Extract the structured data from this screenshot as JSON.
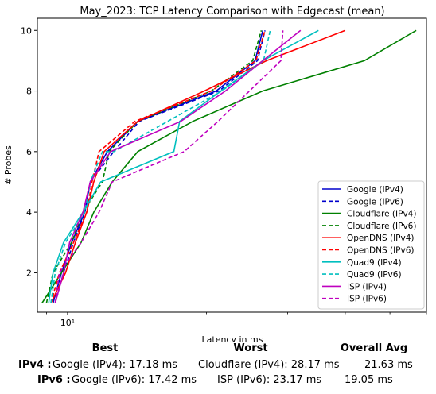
{
  "chart_data": {
    "type": "line",
    "title": "May_2023: TCP Latency Comparison with Edgecast (mean)",
    "xlabel": "Latency in ms",
    "ylabel": "# Probes",
    "xscale": "log",
    "xlim": [
      8.6,
      60
    ],
    "ylim": [
      0.7,
      10.4
    ],
    "xticks": [
      {
        "value": 10,
        "label": "10¹"
      }
    ],
    "yticks": [
      2,
      4,
      6,
      8,
      10
    ],
    "grid": false,
    "legend_position": "lower-right",
    "series": [
      {
        "name": "Google (IPv4)",
        "color": "#0000cc",
        "dash": "solid",
        "points": [
          [
            9.3,
            1
          ],
          [
            9.7,
            2
          ],
          [
            10.2,
            3
          ],
          [
            10.9,
            4
          ],
          [
            11.2,
            5
          ],
          [
            12.2,
            6
          ],
          [
            14.2,
            7
          ],
          [
            21,
            8
          ],
          [
            25.5,
            9
          ],
          [
            26.5,
            10
          ]
        ]
      },
      {
        "name": "Google (IPv6)",
        "color": "#0000cc",
        "dash": "dashed",
        "points": [
          [
            9.4,
            1
          ],
          [
            9.8,
            2
          ],
          [
            10.3,
            3
          ],
          [
            10.9,
            4
          ],
          [
            11.2,
            5
          ],
          [
            12.6,
            6
          ],
          [
            14.3,
            7
          ],
          [
            21.3,
            8
          ],
          [
            25.8,
            9
          ],
          [
            26.8,
            10
          ]
        ]
      },
      {
        "name": "Cloudflare (IPv4)",
        "color": "#008000",
        "dash": "solid",
        "points": [
          [
            8.8,
            1
          ],
          [
            9.7,
            2
          ],
          [
            10.7,
            3
          ],
          [
            11.4,
            4
          ],
          [
            12.5,
            5
          ],
          [
            14.2,
            6
          ],
          [
            18.7,
            7
          ],
          [
            26.5,
            8
          ],
          [
            44,
            9
          ],
          [
            57,
            10
          ]
        ]
      },
      {
        "name": "Cloudflare (IPv6)",
        "color": "#008000",
        "dash": "dashed",
        "points": [
          [
            9.0,
            1
          ],
          [
            9.3,
            2
          ],
          [
            10.2,
            3
          ],
          [
            10.8,
            4
          ],
          [
            11.9,
            5
          ],
          [
            12.3,
            6
          ],
          [
            14.2,
            7
          ],
          [
            20.5,
            8
          ],
          [
            25.2,
            9
          ],
          [
            26.3,
            10
          ]
        ]
      },
      {
        "name": "OpenDNS (IPv4)",
        "color": "#ff0000",
        "dash": "solid",
        "points": [
          [
            9.2,
            1
          ],
          [
            9.9,
            2
          ],
          [
            10.4,
            3
          ],
          [
            11.0,
            4
          ],
          [
            11.4,
            5
          ],
          [
            12.0,
            6
          ],
          [
            14.2,
            7
          ],
          [
            19.8,
            8
          ],
          [
            27,
            9
          ],
          [
            40,
            10
          ]
        ]
      },
      {
        "name": "OpenDNS (IPv6)",
        "color": "#ff0000",
        "dash": "dashed",
        "points": [
          [
            9.2,
            1
          ],
          [
            9.6,
            2
          ],
          [
            10.3,
            3
          ],
          [
            11.0,
            4
          ],
          [
            11.3,
            5
          ],
          [
            11.7,
            6
          ],
          [
            14.0,
            7
          ],
          [
            20.5,
            8
          ],
          [
            25.6,
            9
          ],
          [
            26.8,
            10
          ]
        ]
      },
      {
        "name": "Quad9 (IPv4)",
        "color": "#00bfbf",
        "dash": "solid",
        "points": [
          [
            9.1,
            1
          ],
          [
            9.3,
            2
          ],
          [
            9.8,
            3
          ],
          [
            10.8,
            4
          ],
          [
            11.8,
            5
          ],
          [
            17.0,
            6
          ],
          [
            17.5,
            7
          ],
          [
            21.5,
            8
          ],
          [
            26.5,
            9
          ],
          [
            35,
            10
          ]
        ]
      },
      {
        "name": "Quad9 (IPv6)",
        "color": "#00bfbf",
        "dash": "dashed",
        "points": [
          [
            9.2,
            1
          ],
          [
            9.4,
            2
          ],
          [
            9.9,
            3
          ],
          [
            10.9,
            4
          ],
          [
            11.2,
            5
          ],
          [
            11.9,
            6
          ],
          [
            12.6,
            6
          ],
          [
            21.6,
            8
          ],
          [
            26.6,
            9
          ],
          [
            27.5,
            10
          ]
        ]
      },
      {
        "name": "ISP (IPv4)",
        "color": "#bf00bf",
        "dash": "solid",
        "points": [
          [
            9.4,
            1
          ],
          [
            9.8,
            2
          ],
          [
            10.1,
            3
          ],
          [
            10.8,
            4
          ],
          [
            11.2,
            5
          ],
          [
            12.4,
            6
          ],
          [
            17.6,
            7
          ],
          [
            22,
            8
          ],
          [
            26.5,
            9
          ],
          [
            32,
            10
          ]
        ]
      },
      {
        "name": "ISP (IPv6)",
        "color": "#bf00bf",
        "dash": "dashed",
        "points": [
          [
            9.4,
            1
          ],
          [
            9.6,
            2
          ],
          [
            10.7,
            3
          ],
          [
            11.7,
            4
          ],
          [
            12.5,
            5
          ],
          [
            17.9,
            6
          ],
          [
            21.2,
            7
          ],
          [
            24.8,
            8
          ],
          [
            29,
            9
          ],
          [
            29.3,
            10
          ]
        ]
      }
    ]
  },
  "summary": {
    "headers": {
      "best": "Best",
      "worst": "Worst",
      "avg": "Overall Avg"
    },
    "rows": [
      {
        "label": "IPv4 :",
        "best": "Google (IPv4): 17.18 ms",
        "worst": "Cloudflare (IPv4): 28.17 ms",
        "avg": "21.63 ms"
      },
      {
        "label": "IPv6 :",
        "best": "Google (IPv6): 17.42 ms",
        "worst": "ISP (IPv6): 23.17 ms",
        "avg": "19.05 ms"
      }
    ]
  }
}
